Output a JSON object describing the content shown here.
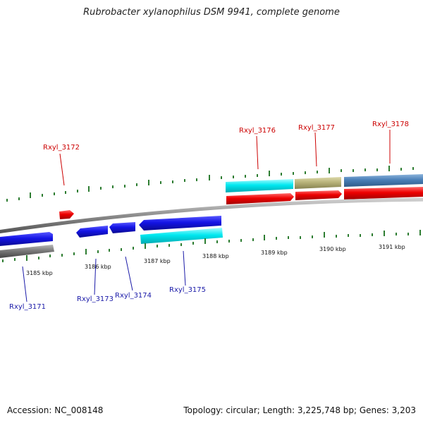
{
  "title": "Rubrobacter xylanophilus DSM 9941, complete genome",
  "accession": "Accession: NC_008148",
  "summary": "Topology: circular; Length: 3,225,748 bp; Genes: 3,203",
  "colors": {
    "forward_label": "#cc0000",
    "reverse_label": "#1a1aa8",
    "tick_mark": "#2e7d32",
    "backbone": "#8a8a8a",
    "red_gene": "#ee0000",
    "blue_gene": "#1414e6",
    "cyan_gene": "#00e8f0",
    "olive_gene": "#b8b37a",
    "steel_gene": "#4a80b8",
    "gray_gene": "#7a7a7a"
  },
  "scale_labels": [
    "3185 kbp",
    "3186 kbp",
    "3187 kbp",
    "3188 kbp",
    "3189 kbp",
    "3190 kbp",
    "3191 kbp"
  ],
  "gene_labels": {
    "rxyl_3171": "Rxyl_3171",
    "rxyl_3172": "Rxyl_3172",
    "rxyl_3173": "Rxyl_3173",
    "rxyl_3174": "Rxyl_3174",
    "rxyl_3175": "Rxyl_3175",
    "rxyl_3176": "Rxyl_3176",
    "rxyl_3177": "Rxyl_3177",
    "rxyl_3178": "Rxyl_3178"
  }
}
